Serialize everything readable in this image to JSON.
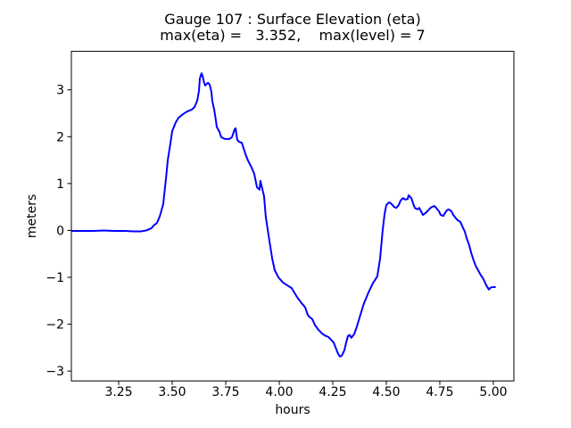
{
  "figure": {
    "title_line1": "Gauge 107 : Surface Elevation (eta)",
    "title_line2": "max(eta) =   3.352,    max(level) = 7",
    "background": "#ffffff",
    "text_color": "#000000"
  },
  "chart_data": {
    "type": "line",
    "title": "Gauge 107 : Surface Elevation (eta)",
    "subtitle": "max(eta) =   3.352,    max(level) = 7",
    "max_eta": 3.352,
    "max_level": 7,
    "xlabel": "hours",
    "ylabel": "meters",
    "xlim": [
      3.029,
      5.096
    ],
    "ylim": [
      -3.21,
      3.82
    ],
    "x_ticks": [
      3.25,
      3.5,
      3.75,
      4.0,
      4.25,
      4.5,
      4.75,
      5.0
    ],
    "x_tick_labels": [
      "3.25",
      "3.50",
      "3.75",
      "4.00",
      "4.25",
      "4.50",
      "4.75",
      "5.00"
    ],
    "y_ticks": [
      -3,
      -2,
      -1,
      0,
      1,
      2,
      3
    ],
    "y_tick_labels": [
      "−3",
      "−2",
      "−1",
      "0",
      "1",
      "2",
      "3"
    ],
    "grid": false,
    "legend": "none",
    "line_color": "#0000ff",
    "line_width": 2,
    "spine_color": "#000000",
    "series": [
      {
        "name": "eta",
        "points": [
          [
            3.033,
            -0.01
          ],
          [
            3.08,
            -0.01
          ],
          [
            3.13,
            -0.01
          ],
          [
            3.18,
            0.0
          ],
          [
            3.23,
            -0.01
          ],
          [
            3.28,
            -0.01
          ],
          [
            3.32,
            -0.02
          ],
          [
            3.354,
            -0.02
          ],
          [
            3.379,
            0.0
          ],
          [
            3.404,
            0.05
          ],
          [
            3.412,
            0.1
          ],
          [
            3.429,
            0.16
          ],
          [
            3.442,
            0.3
          ],
          [
            3.458,
            0.56
          ],
          [
            3.471,
            1.11
          ],
          [
            3.479,
            1.49
          ],
          [
            3.492,
            1.87
          ],
          [
            3.5,
            2.12
          ],
          [
            3.517,
            2.31
          ],
          [
            3.529,
            2.4
          ],
          [
            3.55,
            2.48
          ],
          [
            3.571,
            2.54
          ],
          [
            3.592,
            2.58
          ],
          [
            3.604,
            2.63
          ],
          [
            3.617,
            2.77
          ],
          [
            3.625,
            2.98
          ],
          [
            3.629,
            3.24
          ],
          [
            3.637,
            3.352
          ],
          [
            3.643,
            3.28
          ],
          [
            3.646,
            3.2
          ],
          [
            3.654,
            3.09
          ],
          [
            3.662,
            3.13
          ],
          [
            3.667,
            3.15
          ],
          [
            3.675,
            3.11
          ],
          [
            3.683,
            2.96
          ],
          [
            3.687,
            2.77
          ],
          [
            3.696,
            2.58
          ],
          [
            3.704,
            2.35
          ],
          [
            3.708,
            2.21
          ],
          [
            3.721,
            2.1
          ],
          [
            3.729,
            1.99
          ],
          [
            3.746,
            1.95
          ],
          [
            3.767,
            1.95
          ],
          [
            3.779,
            1.99
          ],
          [
            3.792,
            2.16
          ],
          [
            3.796,
            2.18
          ],
          [
            3.8,
            2.05
          ],
          [
            3.804,
            1.93
          ],
          [
            3.812,
            1.89
          ],
          [
            3.825,
            1.87
          ],
          [
            3.842,
            1.63
          ],
          [
            3.854,
            1.49
          ],
          [
            3.871,
            1.34
          ],
          [
            3.883,
            1.21
          ],
          [
            3.896,
            0.92
          ],
          [
            3.908,
            0.87
          ],
          [
            3.912,
            1.06
          ],
          [
            3.917,
            0.96
          ],
          [
            3.929,
            0.73
          ],
          [
            3.937,
            0.29
          ],
          [
            3.954,
            -0.22
          ],
          [
            3.967,
            -0.6
          ],
          [
            3.979,
            -0.85
          ],
          [
            3.996,
            -1.0
          ],
          [
            4.017,
            -1.11
          ],
          [
            4.037,
            -1.17
          ],
          [
            4.058,
            -1.23
          ],
          [
            4.083,
            -1.42
          ],
          [
            4.104,
            -1.55
          ],
          [
            4.121,
            -1.64
          ],
          [
            4.133,
            -1.8
          ],
          [
            4.142,
            -1.85
          ],
          [
            4.154,
            -1.89
          ],
          [
            4.167,
            -2.02
          ],
          [
            4.183,
            -2.12
          ],
          [
            4.2,
            -2.2
          ],
          [
            4.217,
            -2.25
          ],
          [
            4.229,
            -2.27
          ],
          [
            4.246,
            -2.35
          ],
          [
            4.254,
            -2.39
          ],
          [
            4.267,
            -2.54
          ],
          [
            4.275,
            -2.63
          ],
          [
            4.283,
            -2.69
          ],
          [
            4.292,
            -2.67
          ],
          [
            4.304,
            -2.56
          ],
          [
            4.312,
            -2.4
          ],
          [
            4.321,
            -2.25
          ],
          [
            4.329,
            -2.23
          ],
          [
            4.337,
            -2.29
          ],
          [
            4.35,
            -2.21
          ],
          [
            4.362,
            -2.06
          ],
          [
            4.379,
            -1.8
          ],
          [
            4.396,
            -1.55
          ],
          [
            4.417,
            -1.32
          ],
          [
            4.437,
            -1.13
          ],
          [
            4.458,
            -0.98
          ],
          [
            4.471,
            -0.6
          ],
          [
            4.483,
            0.0
          ],
          [
            4.492,
            0.35
          ],
          [
            4.5,
            0.54
          ],
          [
            4.512,
            0.6
          ],
          [
            4.521,
            0.58
          ],
          [
            4.537,
            0.5
          ],
          [
            4.546,
            0.48
          ],
          [
            4.558,
            0.54
          ],
          [
            4.567,
            0.64
          ],
          [
            4.579,
            0.69
          ],
          [
            4.587,
            0.66
          ],
          [
            4.6,
            0.67
          ],
          [
            4.604,
            0.75
          ],
          [
            4.617,
            0.69
          ],
          [
            4.625,
            0.58
          ],
          [
            4.633,
            0.48
          ],
          [
            4.646,
            0.45
          ],
          [
            4.654,
            0.48
          ],
          [
            4.662,
            0.41
          ],
          [
            4.671,
            0.33
          ],
          [
            4.683,
            0.37
          ],
          [
            4.692,
            0.41
          ],
          [
            4.704,
            0.47
          ],
          [
            4.712,
            0.5
          ],
          [
            4.725,
            0.52
          ],
          [
            4.733,
            0.48
          ],
          [
            4.746,
            0.41
          ],
          [
            4.754,
            0.33
          ],
          [
            4.767,
            0.31
          ],
          [
            4.771,
            0.35
          ],
          [
            4.783,
            0.43
          ],
          [
            4.792,
            0.45
          ],
          [
            4.804,
            0.41
          ],
          [
            4.813,
            0.33
          ],
          [
            4.825,
            0.26
          ],
          [
            4.833,
            0.22
          ],
          [
            4.846,
            0.18
          ],
          [
            4.854,
            0.1
          ],
          [
            4.867,
            -0.03
          ],
          [
            4.875,
            -0.16
          ],
          [
            4.887,
            -0.31
          ],
          [
            4.896,
            -0.47
          ],
          [
            4.908,
            -0.64
          ],
          [
            4.917,
            -0.75
          ],
          [
            4.929,
            -0.85
          ],
          [
            4.937,
            -0.92
          ],
          [
            4.954,
            -1.04
          ],
          [
            4.967,
            -1.17
          ],
          [
            4.979,
            -1.26
          ],
          [
            4.987,
            -1.22
          ],
          [
            4.996,
            -1.21
          ],
          [
            5.008,
            -1.21
          ]
        ]
      }
    ]
  }
}
